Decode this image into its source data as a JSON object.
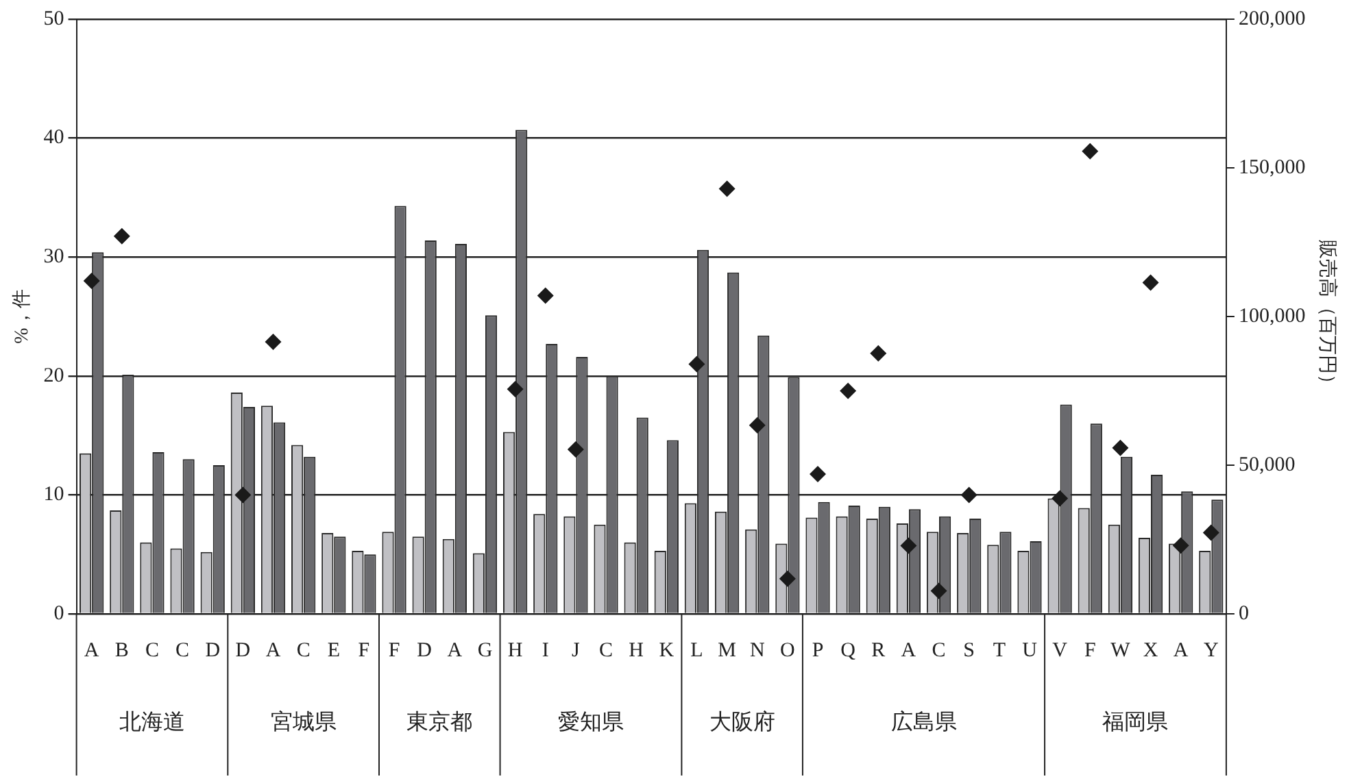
{
  "chart_data": {
    "type": "bar",
    "ylabel": "%，件",
    "y2label": "販売高（百万円）",
    "categories": [
      "A",
      "B",
      "C",
      "C",
      "D",
      "D",
      "A",
      "C",
      "E",
      "F",
      "F",
      "D",
      "A",
      "G",
      "H",
      "I",
      "J",
      "C",
      "H",
      "K",
      "L",
      "M",
      "N",
      "O",
      "P",
      "Q",
      "R",
      "A",
      "C",
      "S",
      "T",
      "U",
      "V",
      "F",
      "W",
      "X",
      "A",
      "Y"
    ],
    "annotations": [
      "北海道",
      "宮城県",
      "東京都",
      "愛知県",
      "大阪府",
      "広島県",
      "福岡県"
    ],
    "series": [
      {
        "color": "#c0c0c4",
        "values": [
          13.5,
          8.7,
          6.0,
          5.5,
          5.2,
          18.6,
          17.5,
          14.2,
          6.8,
          5.3,
          6.9,
          6.5,
          6.3,
          5.1,
          15.3,
          8.4,
          8.2,
          7.5,
          6.0,
          5.3,
          9.3,
          8.6,
          7.1,
          5.9,
          8.1,
          8.2,
          8.0,
          7.6,
          6.9,
          6.8,
          5.8,
          5.3,
          9.7,
          8.9,
          7.5,
          6.4,
          5.9,
          5.3
        ]
      },
      {
        "color": "#6a6a6e",
        "values": [
          30.4,
          20.1,
          13.6,
          13.0,
          12.5,
          17.4,
          16.1,
          13.2,
          6.5,
          5.0,
          34.3,
          31.4,
          31.1,
          25.1,
          40.7,
          22.7,
          21.6,
          20.0,
          16.5,
          14.6,
          30.6,
          28.7,
          23.4,
          19.9,
          9.4,
          9.1,
          9.0,
          8.8,
          8.2,
          8.0,
          6.9,
          6.1,
          17.6,
          16.0,
          13.2,
          11.7,
          10.3,
          9.6
        ]
      },
      {
        "type": "scatter",
        "axis": "y2",
        "color": "#1a1a1a",
        "marker": "diamond",
        "values": [
          112000,
          127000,
          null,
          null,
          null,
          40000,
          91500,
          null,
          null,
          null,
          null,
          null,
          null,
          null,
          75600,
          107000,
          55300,
          null,
          null,
          null,
          84000,
          143000,
          63400,
          11800,
          47000,
          75000,
          87600,
          22900,
          7700,
          40000,
          null,
          null,
          38800,
          155600,
          55800,
          111400,
          23000,
          27300
        ]
      }
    ],
    "ylim": [
      0,
      50
    ],
    "yticks": [
      0,
      10,
      20,
      30,
      40,
      50
    ],
    "y2lim": [
      0,
      200000
    ],
    "y2ticks": [
      {
        "value": 0,
        "label": "0"
      },
      {
        "value": 50000,
        "label": "50,000"
      },
      {
        "value": 100000,
        "label": "100,000"
      },
      {
        "value": 150000,
        "label": "150,000"
      },
      {
        "value": 200000,
        "label": "200,000"
      }
    ],
    "grid": "y",
    "legend": false
  }
}
